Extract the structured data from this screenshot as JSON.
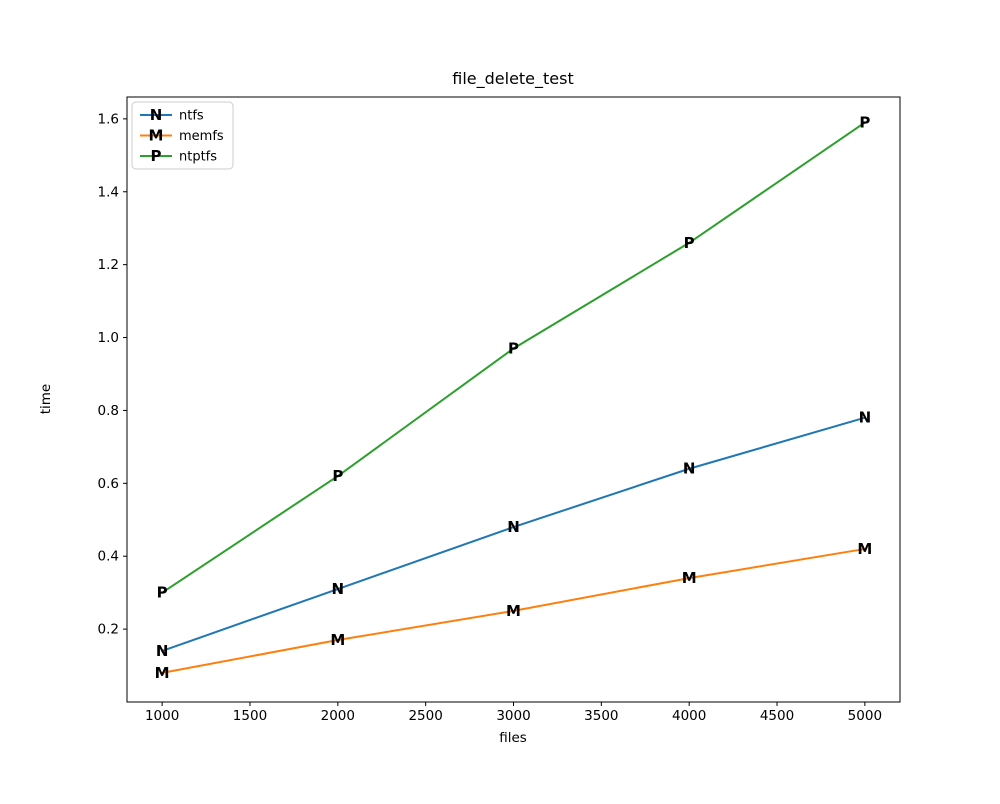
{
  "chart_data": {
    "type": "line",
    "title": "file_delete_test",
    "xlabel": "files",
    "ylabel": "time",
    "x": [
      1000,
      2000,
      3000,
      4000,
      5000
    ],
    "series": [
      {
        "name": "ntfs",
        "marker": "N",
        "color": "#1f77b4",
        "values": [
          0.14,
          0.31,
          0.48,
          0.64,
          0.78
        ]
      },
      {
        "name": "memfs",
        "marker": "M",
        "color": "#ff7f0e",
        "values": [
          0.08,
          0.17,
          0.25,
          0.34,
          0.42
        ]
      },
      {
        "name": "ntptfs",
        "marker": "P",
        "color": "#2ca02c",
        "values": [
          0.3,
          0.62,
          0.97,
          1.26,
          1.59
        ]
      }
    ],
    "xticks": [
      "1000",
      "1500",
      "2000",
      "2500",
      "3000",
      "3500",
      "4000",
      "4500",
      "5000"
    ],
    "yticks": [
      "0.2",
      "0.4",
      "0.6",
      "0.8",
      "1.0",
      "1.2",
      "1.4",
      "1.6"
    ],
    "xlim": [
      800,
      5200
    ],
    "ylim": [
      0,
      1.66
    ],
    "grid": false,
    "legend_position": "upper left",
    "colors": {
      "spine": "#000000",
      "background": "#ffffff",
      "legend_border": "#cccccc"
    }
  }
}
